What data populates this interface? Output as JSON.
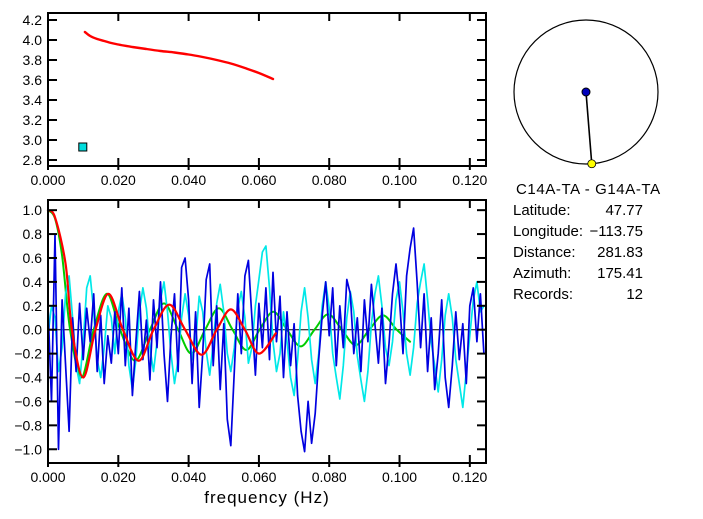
{
  "info": {
    "title": "C14A-TA - G14A-TA",
    "rows": [
      {
        "label": "Latitude:",
        "value": "47.77"
      },
      {
        "label": "Longitude:",
        "value": "−113.75"
      },
      {
        "label": "Distance:",
        "value": "281.83"
      },
      {
        "label": "Azimuth:",
        "value": "175.41"
      },
      {
        "label": "Records:",
        "value": "12"
      }
    ]
  },
  "azimuth_dial": {
    "azimuth_deg": 175.41,
    "center_dot_color": "#0000BB",
    "end_dot_color": "#FFFF00",
    "circle_color": "#000000"
  },
  "chart_data": [
    {
      "id": "dispersion",
      "type": "line",
      "title": "",
      "xlabel": "",
      "ylabel": "",
      "xlim": [
        0,
        0.1246
      ],
      "ylim": [
        2.74,
        4.27
      ],
      "grid": false,
      "xticks": [
        0,
        0.02,
        0.04,
        0.06,
        0.08,
        0.1,
        0.12
      ],
      "xtick_labels": [
        "0.000",
        "0.020",
        "0.040",
        "0.060",
        "0.080",
        "0.100",
        "0.120"
      ],
      "yticks": [
        2.8,
        3.0,
        3.2,
        3.4,
        3.6,
        3.8,
        4.0,
        4.2
      ],
      "ytick_labels": [
        "2.8",
        "3.0",
        "3.2",
        "3.4",
        "3.6",
        "3.8",
        "4.0",
        "4.2"
      ],
      "series": [
        {
          "name": "red-dispersion-curve",
          "color": "#FF0000",
          "width": 2.4,
          "draw": "smooth",
          "points": [
            [
              0.0105,
              4.08
            ],
            [
              0.012,
              4.04
            ],
            [
              0.014,
              4.01
            ],
            [
              0.016,
              3.99
            ],
            [
              0.018,
              3.97
            ],
            [
              0.02,
              3.955
            ],
            [
              0.024,
              3.93
            ],
            [
              0.028,
              3.91
            ],
            [
              0.032,
              3.89
            ],
            [
              0.036,
              3.875
            ],
            [
              0.04,
              3.855
            ],
            [
              0.044,
              3.83
            ],
            [
              0.048,
              3.8
            ],
            [
              0.052,
              3.765
            ],
            [
              0.056,
              3.72
            ],
            [
              0.06,
              3.67
            ],
            [
              0.064,
              3.61
            ]
          ]
        }
      ],
      "markers": [
        {
          "name": "cyan-square-marker",
          "x": 0.0099,
          "y": 2.93,
          "color": "#00DDDD",
          "size": 8
        }
      ]
    },
    {
      "id": "correlation",
      "type": "line",
      "title": "",
      "xlabel": "frequency (Hz)",
      "ylabel": "",
      "xlim": [
        0,
        0.1246
      ],
      "ylim": [
        -1.115,
        1.085
      ],
      "grid": false,
      "zero_line": true,
      "xticks": [
        0,
        0.02,
        0.04,
        0.06,
        0.08,
        0.1,
        0.12
      ],
      "xtick_labels": [
        "0.000",
        "0.020",
        "0.040",
        "0.060",
        "0.080",
        "0.100",
        "0.120"
      ],
      "yticks": [
        1.0,
        0.8,
        0.6,
        0.4,
        0.2,
        0.0,
        -0.2,
        -0.4,
        -0.6,
        -0.8,
        -1.0
      ],
      "ytick_labels": [
        "1.0",
        "0.8",
        "0.6",
        "0.4",
        "0.2",
        "0.0",
        "−0.2",
        "−0.4",
        "−0.6",
        "−0.8",
        "−1.0"
      ],
      "series": [
        {
          "name": "green-model-curve",
          "color": "#00CC00",
          "width": 2.0,
          "draw": "smooth",
          "points": [
            [
              0,
              1.0
            ],
            [
              0.002,
              0.93
            ],
            [
              0.004,
              0.62
            ],
            [
              0.0063,
              0.0
            ],
            [
              0.0095,
              -0.4
            ],
            [
              0.013,
              0.0
            ],
            [
              0.0168,
              0.3
            ],
            [
              0.0205,
              0.0
            ],
            [
              0.0248,
              -0.26
            ],
            [
              0.029,
              0.0
            ],
            [
              0.033,
              0.22
            ],
            [
              0.037,
              0.0
            ],
            [
              0.0408,
              -0.2
            ],
            [
              0.0447,
              0.0
            ],
            [
              0.0486,
              0.18
            ],
            [
              0.0525,
              0.0
            ],
            [
              0.0564,
              -0.17
            ],
            [
              0.0602,
              0.0
            ],
            [
              0.0641,
              0.15
            ],
            [
              0.068,
              0.0
            ],
            [
              0.0719,
              -0.14
            ],
            [
              0.0758,
              0.0
            ],
            [
              0.0797,
              0.13
            ],
            [
              0.0836,
              0.0
            ],
            [
              0.0875,
              -0.13
            ],
            [
              0.0914,
              0.0
            ],
            [
              0.0953,
              0.12
            ],
            [
              0.0992,
              0.0
            ],
            [
              0.103,
              -0.1
            ]
          ]
        },
        {
          "name": "cyan-stack-curve",
          "color": "#00E8E8",
          "width": 1.7,
          "draw": "poly",
          "x_start": 0,
          "x_step": 0.001,
          "values": [
            -0.05,
            0.2,
            0.1,
            -0.35,
            -0.15,
            0.3,
            0.45,
            0.1,
            -0.3,
            -0.45,
            -0.1,
            0.35,
            0.45,
            0.15,
            -0.25,
            -0.4,
            -0.15,
            0.2,
            0.1,
            -0.2,
            0.15,
            0.3,
            0.1,
            -0.3,
            -0.5,
            -0.25,
            0.15,
            0.35,
            0.18,
            -0.15,
            -0.35,
            -0.1,
            0.25,
            0.4,
            0.15,
            -0.2,
            -0.45,
            -0.25,
            0.1,
            0.3,
            0.12,
            -0.25,
            -0.1,
            0.28,
            0.15,
            -0.18,
            -0.38,
            -0.12,
            0.22,
            0.38,
            0.15,
            -0.2,
            -0.35,
            -0.15,
            0.18,
            0.32,
            0.1,
            -0.28,
            -0.15,
            0.2,
            0.42,
            0.65,
            0.7,
            0.35,
            -0.1,
            -0.35,
            -0.2,
            0.15,
            -0.1,
            -0.4,
            -0.55,
            -0.25,
            0.15,
            0.35,
            0.1,
            -0.25,
            -0.45,
            -0.2,
            0.2,
            0.4,
            0.18,
            -0.2,
            -0.4,
            -0.58,
            -0.3,
            0.1,
            0.32,
            0.15,
            -0.22,
            -0.42,
            -0.6,
            -0.35,
            0.05,
            0.3,
            0.45,
            0.2,
            -0.15,
            -0.3,
            -0.1,
            0.25,
            0.4,
            0.15,
            -0.2,
            -0.38,
            -0.15,
            0.22,
            0.4,
            0.55,
            0.25,
            -0.1,
            -0.3,
            -0.52,
            -0.25,
            0.12,
            0.3,
            0.1,
            -0.25,
            -0.45,
            -0.65,
            -0.35,
            -0.05,
            0.25,
            0.4,
            0.15,
            0.2
          ]
        },
        {
          "name": "blue-stack-curve",
          "color": "#0000E0",
          "width": 1.7,
          "draw": "poly",
          "x_start": 0,
          "x_step": 0.001,
          "values": [
            0.2,
            -0.6,
            0.8,
            -1.0,
            0.25,
            -0.3,
            -0.85,
            0.1,
            -0.35,
            0.22,
            -0.25,
            0.18,
            -0.1,
            0.3,
            -0.35,
            0.12,
            -0.45,
            -0.05,
            -0.28,
            0.15,
            -0.2,
            0.35,
            -0.3,
            0.18,
            -0.55,
            -0.1,
            0.32,
            -0.25,
            0.08,
            -0.42,
            0.25,
            -0.15,
            0.4,
            -0.2,
            -0.6,
            -0.05,
            0.3,
            -0.35,
            0.52,
            0.6,
            0.25,
            -0.45,
            0.15,
            -0.65,
            -0.2,
            0.42,
            0.55,
            -0.3,
            0.2,
            -0.5,
            0.05,
            -0.75,
            -0.97,
            -0.35,
            0.3,
            -0.2,
            0.45,
            0.58,
            0.1,
            -0.38,
            0.22,
            -0.15,
            0.35,
            -0.25,
            0.48,
            -0.1,
            0.28,
            -0.4,
            0.15,
            -0.3,
            0.05,
            -0.55,
            -0.85,
            -1.02,
            -0.6,
            -0.95,
            -0.7,
            -0.25,
            0.12,
            0.4,
            -0.05,
            0.35,
            -0.3,
            0.2,
            -0.15,
            0.42,
            0.3,
            -0.2,
            0.1,
            -0.35,
            0.25,
            -0.1,
            0.38,
            0.05,
            -0.28,
            0.18,
            -0.45,
            -0.12,
            0.3,
            0.55,
            0.25,
            -0.2,
            0.45,
            0.68,
            0.85,
            0.4,
            -0.15,
            0.3,
            -0.35,
            0.1,
            -0.5,
            -0.2,
            0.25,
            -0.4,
            -0.65,
            -0.3,
            0.15,
            -0.25,
            0.05,
            -0.45,
            0.2,
            0.35,
            -0.1,
            0.3,
            -0.2
          ]
        },
        {
          "name": "red-fit-curve",
          "color": "#FF0000",
          "width": 2.2,
          "draw": "smooth",
          "points": [
            [
              0,
              1.0
            ],
            [
              0.002,
              0.94
            ],
            [
              0.005,
              0.55
            ],
            [
              0.0068,
              0.0
            ],
            [
              0.01,
              -0.4
            ],
            [
              0.0135,
              0.0
            ],
            [
              0.0172,
              0.3
            ],
            [
              0.0213,
              0.0
            ],
            [
              0.0258,
              -0.26
            ],
            [
              0.03,
              0.0
            ],
            [
              0.0345,
              0.21
            ],
            [
              0.039,
              0.0
            ],
            [
              0.0437,
              -0.21
            ],
            [
              0.048,
              0.0
            ],
            [
              0.052,
              0.17
            ],
            [
              0.056,
              0.0
            ],
            [
              0.06,
              -0.2
            ],
            [
              0.0648,
              -0.03
            ]
          ]
        }
      ],
      "markers": []
    }
  ]
}
